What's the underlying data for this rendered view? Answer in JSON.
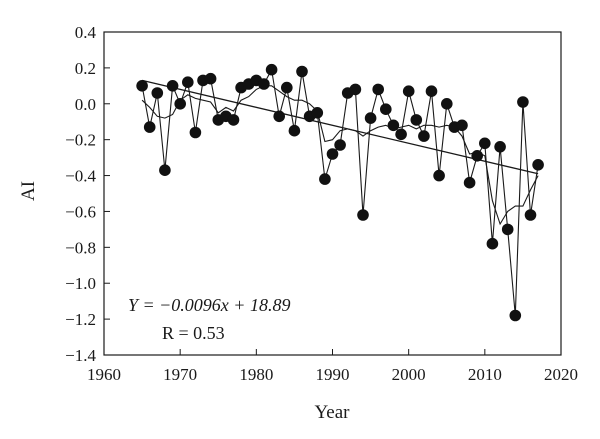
{
  "chart_data": {
    "type": "scatter",
    "xlabel": "Year",
    "ylabel": "AI",
    "xlim": [
      1960,
      2020
    ],
    "ylim": [
      -1.4,
      0.4
    ],
    "xticks": [
      "1960",
      "1970",
      "1980",
      "1990",
      "2000",
      "2010",
      "2020"
    ],
    "yticks": [
      "0.4",
      "0.2",
      "0.0",
      "−0.2",
      "−0.4",
      "−0.6",
      "−0.8",
      "−1.0",
      "−1.2",
      "−1.4"
    ],
    "grid": false,
    "legend": "none",
    "series": [
      {
        "kind": "points-with-line",
        "x": [
          1965,
          1966,
          1967,
          1968,
          1969,
          1970,
          1971,
          1972,
          1973,
          1974,
          1975,
          1976,
          1977,
          1978,
          1979,
          1980,
          1981,
          1982,
          1983,
          1984,
          1985,
          1986,
          1987,
          1988,
          1989,
          1990,
          1991,
          1992,
          1993,
          1994,
          1995,
          1996,
          1997,
          1998,
          1999,
          2000,
          2001,
          2002,
          2003,
          2004,
          2005,
          2006,
          2007,
          2008,
          2009,
          2010,
          2011,
          2012,
          2013,
          2014,
          2015,
          2016,
          2017
        ],
        "y": [
          0.1,
          -0.13,
          0.06,
          -0.37,
          0.1,
          0.0,
          0.12,
          -0.16,
          0.13,
          0.14,
          -0.09,
          -0.07,
          -0.09,
          0.09,
          0.11,
          0.13,
          0.11,
          0.19,
          -0.07,
          0.09,
          -0.15,
          0.18,
          -0.07,
          -0.05,
          -0.42,
          -0.28,
          -0.23,
          0.06,
          0.08,
          -0.62,
          -0.08,
          0.08,
          -0.03,
          -0.12,
          -0.17,
          0.07,
          -0.09,
          -0.18,
          0.07,
          -0.4,
          0.0,
          -0.13,
          -0.12,
          -0.44,
          -0.29,
          -0.22,
          -0.78,
          -0.24,
          -0.7,
          -1.18,
          0.01,
          -0.62,
          -0.34
        ]
      },
      {
        "kind": "smoothed-line",
        "x": [
          1965,
          1966,
          1967,
          1968,
          1969,
          1970,
          1971,
          1972,
          1973,
          1974,
          1975,
          1976,
          1977,
          1978,
          1979,
          1980,
          1981,
          1982,
          1983,
          1984,
          1985,
          1986,
          1987,
          1988,
          1989,
          1990,
          1991,
          1992,
          1993,
          1994,
          1995,
          1996,
          1997,
          1998,
          1999,
          2000,
          2001,
          2002,
          2003,
          2004,
          2005,
          2006,
          2007,
          2008,
          2009,
          2010,
          2011,
          2012,
          2013,
          2014,
          2015,
          2016,
          2017
        ],
        "y": [
          0.02,
          -0.02,
          -0.07,
          -0.08,
          -0.06,
          0.02,
          0.05,
          0.03,
          0.02,
          0.01,
          -0.05,
          -0.02,
          -0.04,
          0.02,
          0.04,
          0.08,
          0.1,
          0.1,
          0.07,
          0.04,
          0.02,
          0.02,
          0.0,
          -0.04,
          -0.21,
          -0.2,
          -0.15,
          -0.14,
          -0.15,
          -0.18,
          -0.15,
          -0.13,
          -0.12,
          -0.14,
          -0.13,
          -0.12,
          -0.14,
          -0.12,
          -0.12,
          -0.13,
          -0.12,
          -0.13,
          -0.18,
          -0.28,
          -0.27,
          -0.29,
          -0.54,
          -0.67,
          -0.6,
          -0.57,
          -0.57,
          -0.48,
          -0.4
        ]
      },
      {
        "kind": "trend-line",
        "x": [
          1965,
          2017
        ],
        "y": [
          0.13,
          -0.39
        ]
      }
    ],
    "annotations": {
      "equation": "Y = −0.0096x + 18.89",
      "r_value": "R = 0.53"
    }
  }
}
